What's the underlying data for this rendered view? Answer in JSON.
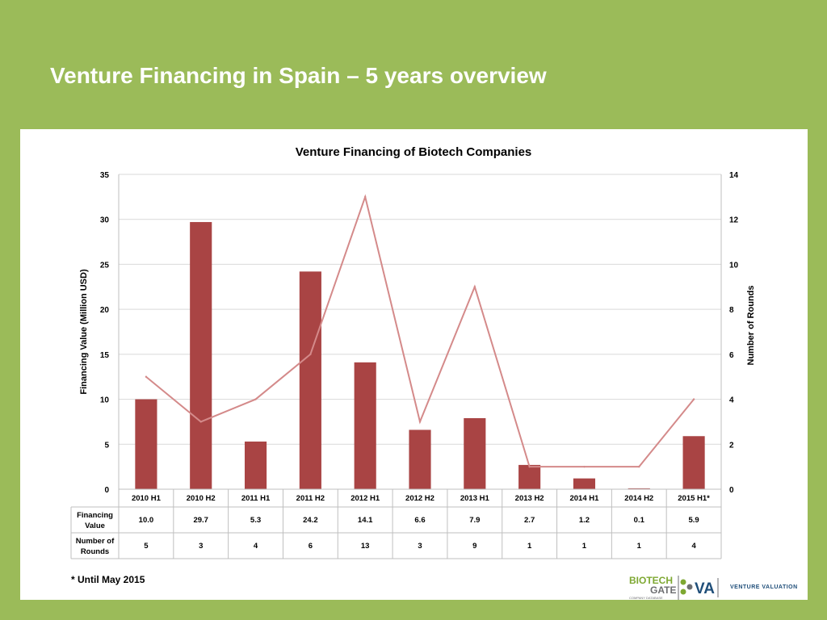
{
  "slide": {
    "title": "Venture Financing in Spain – 5 years overview",
    "footnote": "* Until May 2015"
  },
  "logo": {
    "biotech": "BIOTECH",
    "gate": "GATE",
    "tagline": "COMPANY DATABASE",
    "va": "VA",
    "venture_valuation": "VENTURE VALUATION"
  },
  "colors": {
    "background": "#9bbb59",
    "bar": "#a94444",
    "line": "#d48a8a",
    "logo_green": "#7ea832",
    "logo_gray": "#6d6e71"
  },
  "chart_data": {
    "type": "bar",
    "title": "Venture Financing of Biotech Companies",
    "categories": [
      "2010 H1",
      "2010 H2",
      "2011 H1",
      "2011 H2",
      "2012 H1",
      "2012 H2",
      "2013 H1",
      "2013 H2",
      "2014 H1",
      "2014 H2",
      "2015 H1*"
    ],
    "series": [
      {
        "name": "Financing Value",
        "type": "bar",
        "axis": "left",
        "values": [
          10.0,
          29.7,
          5.3,
          24.2,
          14.1,
          6.6,
          7.9,
          2.7,
          1.2,
          0.1,
          5.9
        ],
        "labels": [
          "10.0",
          "29.7",
          "5.3",
          "24.2",
          "14.1",
          "6.6",
          "7.9",
          "2.7",
          "1.2",
          "0.1",
          "5.9"
        ]
      },
      {
        "name": "Number of Rounds",
        "type": "line",
        "axis": "right",
        "values": [
          5,
          3,
          4,
          6,
          13,
          3,
          9,
          1,
          1,
          1,
          4
        ],
        "labels": [
          "5",
          "3",
          "4",
          "6",
          "13",
          "3",
          "9",
          "1",
          "1",
          "1",
          "4"
        ]
      }
    ],
    "ylabel": "Financing Value (Million USD)",
    "y2label": "Number of Rounds",
    "ylim": [
      0,
      35
    ],
    "y2lim": [
      0,
      14
    ],
    "yticks": [
      "0",
      "5",
      "10",
      "15",
      "20",
      "25",
      "30",
      "35"
    ],
    "y2ticks": [
      "0",
      "2",
      "4",
      "6",
      "8",
      "10",
      "12",
      "14"
    ],
    "table_rows": [
      {
        "label_line1": "Financing",
        "label_line2": "Value"
      },
      {
        "label_line1": "Number of",
        "label_line2": "Rounds"
      }
    ],
    "grid": true,
    "legend": "data table"
  }
}
